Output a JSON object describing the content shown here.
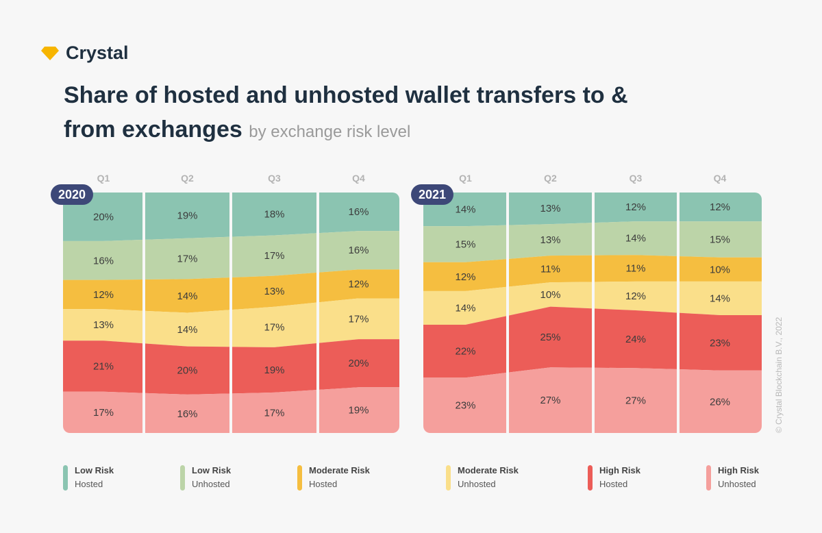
{
  "brand": {
    "name": "Crystal",
    "logo_color": "#f7b500"
  },
  "title": "Share of hosted and unhosted wallet transfers to & from exchanges",
  "subtitle": "by exchange risk level",
  "copyright": "© Crystal Blockchain B.V., 2022",
  "chart_data": [
    {
      "type": "area",
      "title": "2020",
      "categories": [
        "Q1",
        "Q2",
        "Q3",
        "Q4"
      ],
      "stacked": true,
      "normalized": true,
      "unit": "%",
      "series": [
        {
          "name": "Low Risk Hosted",
          "values": [
            20,
            19,
            18,
            16
          ]
        },
        {
          "name": "Low Risk Unhosted",
          "values": [
            16,
            17,
            17,
            16
          ]
        },
        {
          "name": "Moderate Risk Hosted",
          "values": [
            12,
            14,
            13,
            12
          ]
        },
        {
          "name": "Moderate Risk Unhosted",
          "values": [
            13,
            14,
            17,
            17
          ]
        },
        {
          "name": "High Risk Hosted",
          "values": [
            21,
            20,
            19,
            20
          ]
        },
        {
          "name": "High Risk Unhosted",
          "values": [
            17,
            16,
            17,
            19
          ]
        }
      ]
    },
    {
      "type": "area",
      "title": "2021",
      "categories": [
        "Q1",
        "Q2",
        "Q3",
        "Q4"
      ],
      "stacked": true,
      "normalized": true,
      "unit": "%",
      "series": [
        {
          "name": "Low Risk Hosted",
          "values": [
            14,
            13,
            12,
            12
          ]
        },
        {
          "name": "Low Risk Unhosted",
          "values": [
            15,
            13,
            14,
            15
          ]
        },
        {
          "name": "Moderate Risk Hosted",
          "values": [
            12,
            11,
            11,
            10
          ]
        },
        {
          "name": "Moderate Risk Unhosted",
          "values": [
            14,
            10,
            12,
            14
          ]
        },
        {
          "name": "High Risk Hosted",
          "values": [
            22,
            25,
            24,
            23
          ]
        },
        {
          "name": "High Risk Unhosted",
          "values": [
            23,
            27,
            27,
            26
          ]
        }
      ]
    }
  ],
  "legend": [
    {
      "line1": "Low Risk",
      "line2": "Hosted",
      "color": "#8bc4b1"
    },
    {
      "line1": "Low Risk",
      "line2": "Unhosted",
      "color": "#bcd4a8"
    },
    {
      "line1": "Moderate Risk",
      "line2": "Hosted",
      "color": "#f5be40"
    },
    {
      "line1": "Moderate Risk",
      "line2": "Unhosted",
      "color": "#fadf8a"
    },
    {
      "line1": "High Risk",
      "line2": "Hosted",
      "color": "#ec5d58"
    },
    {
      "line1": "High Risk",
      "line2": "Unhosted",
      "color": "#f59f9c"
    }
  ],
  "badge_color": "#3d4878"
}
